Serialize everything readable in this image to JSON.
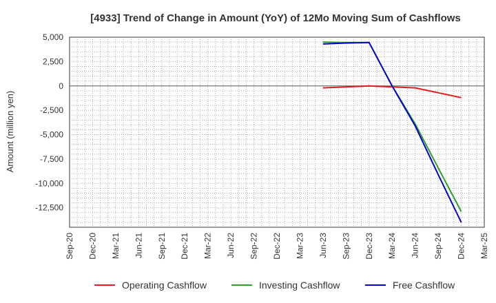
{
  "chart_data": {
    "type": "line",
    "title": "[4933]  Trend of Change in Amount (YoY) of 12Mo Moving Sum of Cashflows",
    "xlabel": "",
    "ylabel": "Amount (million yen)",
    "ylim": [
      -14500,
      5000
    ],
    "yticks": [
      5000,
      2500,
      0,
      -2500,
      -5000,
      -7500,
      -10000,
      -12500
    ],
    "ytick_labels": [
      "5,000",
      "2,500",
      "0",
      "-2,500",
      "-5,000",
      "-7,500",
      "-10,000",
      "-12,500"
    ],
    "categories": [
      "Sep-20",
      "Dec-20",
      "Mar-21",
      "Jun-21",
      "Sep-21",
      "Dec-21",
      "Mar-22",
      "Jun-22",
      "Sep-22",
      "Dec-22",
      "Mar-23",
      "Jun-23",
      "Sep-23",
      "Dec-23",
      "Mar-24",
      "Jun-24",
      "Sep-24",
      "Dec-24",
      "Mar-25"
    ],
    "grid": true,
    "legend_position": "bottom",
    "series": [
      {
        "name": "Operating Cashflow",
        "color": "#e31a1c",
        "values": [
          null,
          null,
          null,
          null,
          null,
          null,
          null,
          null,
          null,
          null,
          null,
          -200,
          -100,
          0,
          -100,
          -200,
          -700,
          -1200,
          null
        ]
      },
      {
        "name": "Investing Cashflow",
        "color": "#2ca02c",
        "values": [
          null,
          null,
          null,
          null,
          null,
          null,
          null,
          null,
          null,
          null,
          null,
          4500,
          4450,
          4450,
          0,
          -3900,
          -8400,
          -12900,
          null
        ]
      },
      {
        "name": "Free Cashflow",
        "color": "#0000cc",
        "values": [
          null,
          null,
          null,
          null,
          null,
          null,
          null,
          null,
          null,
          null,
          null,
          4300,
          4400,
          4450,
          0,
          -4100,
          -9100,
          -14000,
          null
        ]
      }
    ]
  }
}
